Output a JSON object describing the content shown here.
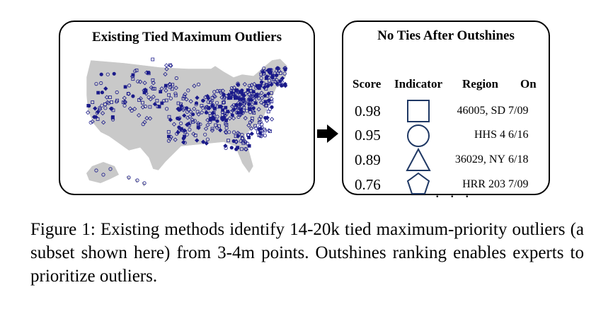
{
  "left_panel": {
    "title": "Existing Tied Maximum Outliers",
    "map_stroke_color": "#1b1b8a",
    "map_fill_color": "#c9c9c9"
  },
  "arrow_icon": "right-arrow-icon",
  "right_panel": {
    "title": "No Ties After Outshines",
    "headers": {
      "score": "Score",
      "indicator": "Indicator",
      "region": "Region",
      "on": "On"
    },
    "rows": [
      {
        "score": "0.98",
        "indicator": "square-icon",
        "region": "46005, SD",
        "on": "7/09"
      },
      {
        "score": "0.95",
        "indicator": "circle-icon",
        "region": "HHS 4",
        "on": "6/16"
      },
      {
        "score": "0.89",
        "indicator": "triangle-icon",
        "region": "36029, NY",
        "on": "6/18"
      },
      {
        "score": "0.76",
        "indicator": "pentagon-icon",
        "region": "HRR 203",
        "on": "7/09"
      }
    ],
    "ellipsis": ". . .",
    "indicator_color": "#1f3864"
  },
  "caption": "Figure 1: Existing methods identify 14-20k tied maximum-priority outliers (a subset shown here) from 3-4m points. Outshines ranking enables experts to prioritize outliers."
}
